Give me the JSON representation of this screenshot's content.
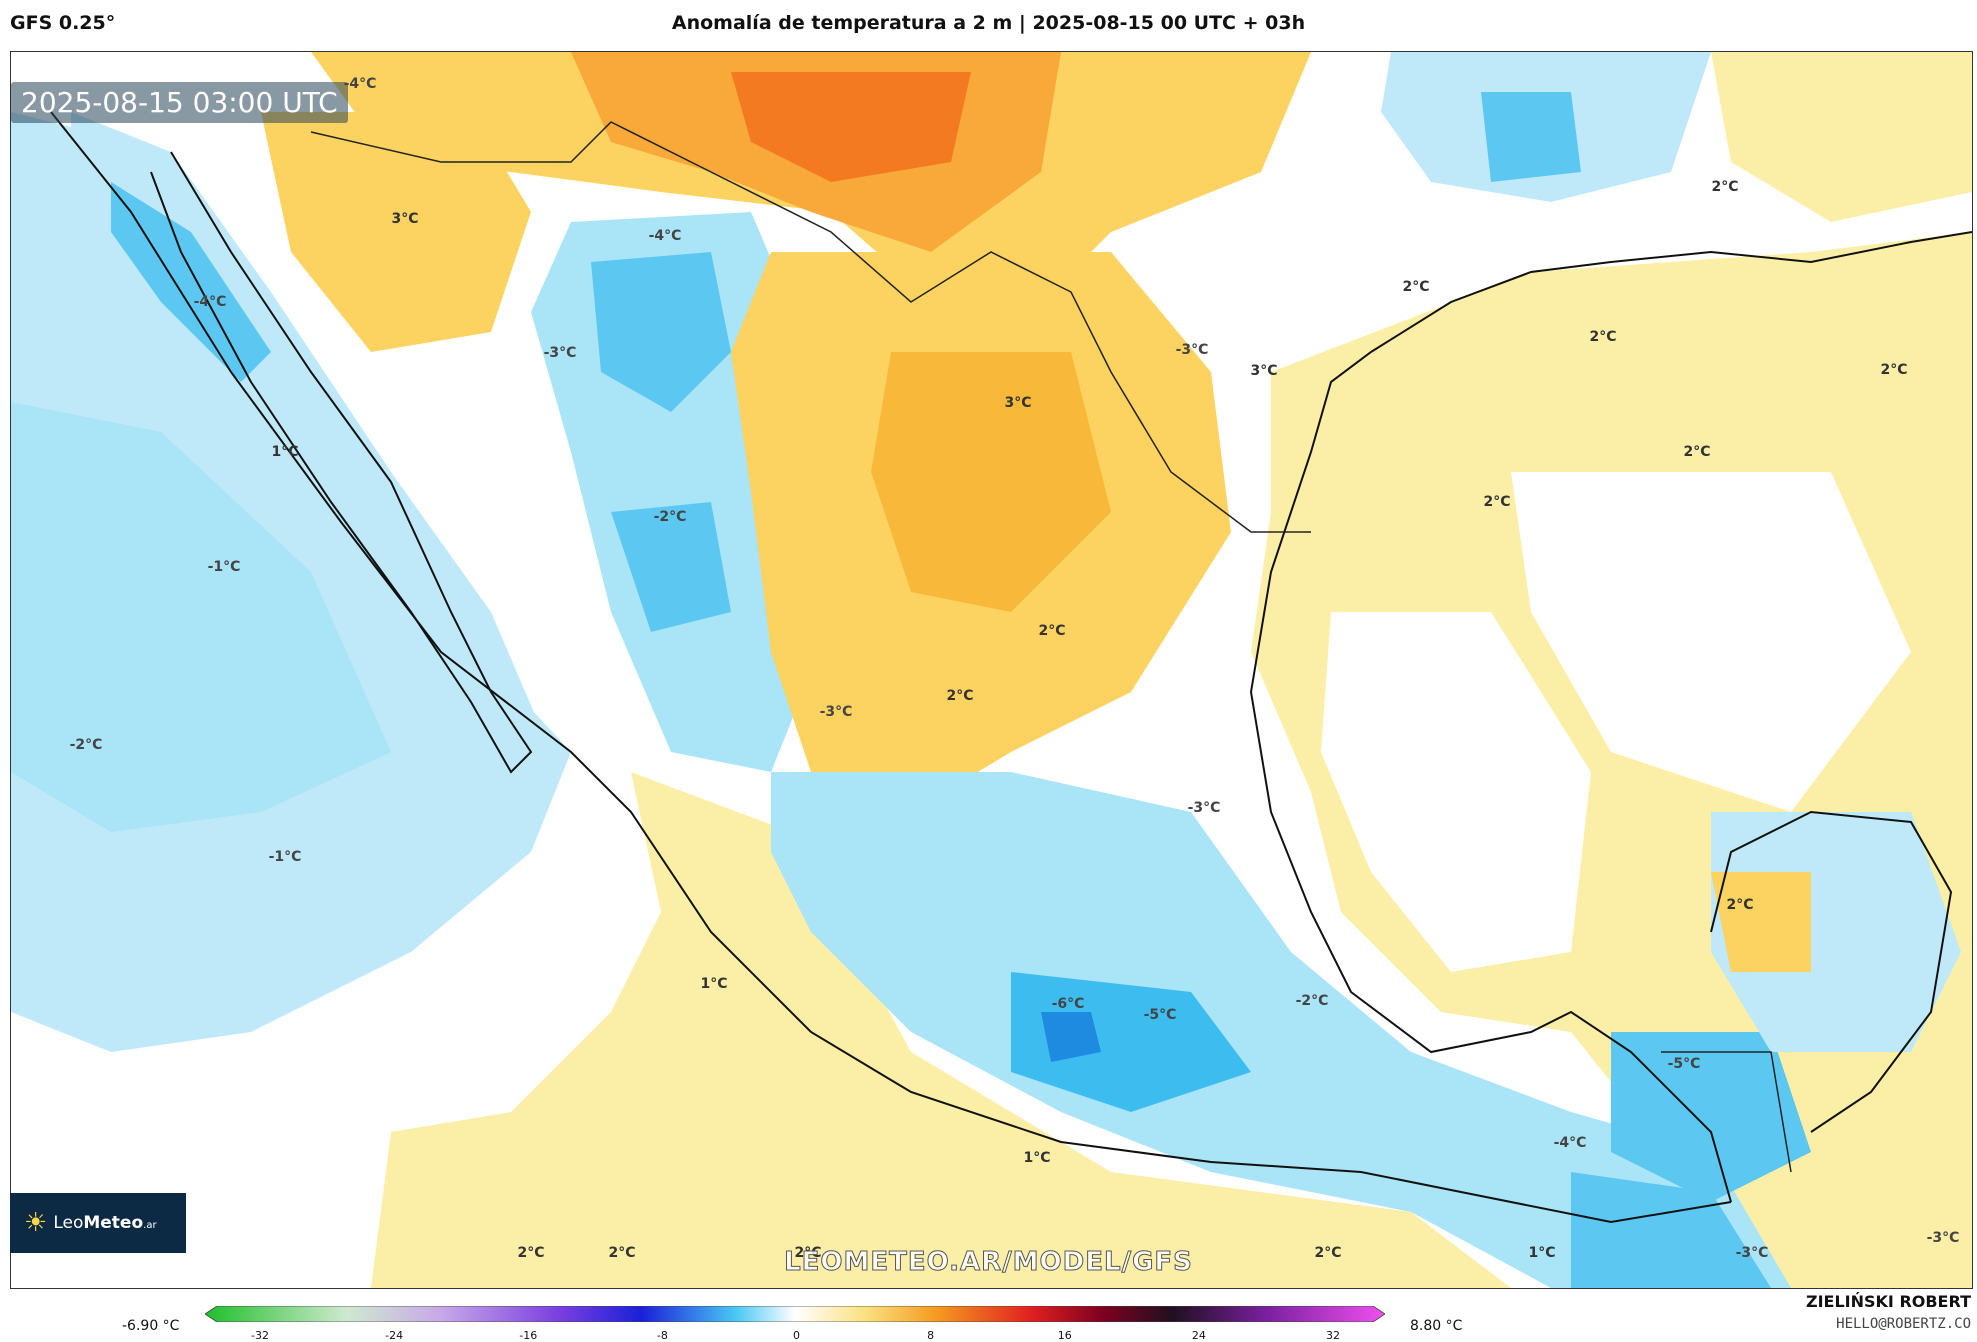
{
  "header": {
    "model": "GFS 0.25°",
    "title": "Anomalía de temperatura a 2 m | 2025-08-15 00 UTC + 03h"
  },
  "map": {
    "timestamp": "2025-08-15 03:00 UTC",
    "watermark": "LEOMETEO.AR/MODEL/GFS",
    "labels": [
      {
        "text": "-4°C"
      },
      {
        "text": "3°C"
      },
      {
        "text": "-4°C"
      },
      {
        "text": "-4°C"
      },
      {
        "text": "-3°C"
      },
      {
        "text": "-2°C"
      },
      {
        "text": "1°C"
      },
      {
        "text": "-1°C"
      },
      {
        "text": "-2°C"
      },
      {
        "text": "-1°C"
      },
      {
        "text": "3°C"
      },
      {
        "text": "2°C"
      },
      {
        "text": "2°C"
      },
      {
        "text": "-3°C"
      },
      {
        "text": "-3°C"
      },
      {
        "text": "-6°C"
      },
      {
        "text": "-5°C"
      },
      {
        "text": "-2°C"
      },
      {
        "text": "-5°C"
      },
      {
        "text": "-4°C"
      },
      {
        "text": "-3°C"
      },
      {
        "text": "1°C"
      },
      {
        "text": "1°C"
      },
      {
        "text": "2°C"
      },
      {
        "text": "2°C"
      },
      {
        "text": "2°C"
      },
      {
        "text": "2°C"
      },
      {
        "text": "1°C"
      },
      {
        "text": "-3°C"
      },
      {
        "text": "2°C"
      },
      {
        "text": "2°C"
      },
      {
        "text": "3°C"
      },
      {
        "text": "2°C"
      },
      {
        "text": "2°C"
      },
      {
        "text": "2°C"
      },
      {
        "text": "2°C"
      },
      {
        "text": "2°C"
      },
      {
        "text": "-3°C"
      }
    ]
  },
  "logo": {
    "brand_a": "Leo",
    "brand_b": "Meteo",
    "suffix": ".ar"
  },
  "colorbar": {
    "min_label": "-6.90 °C",
    "max_label": "8.80 °C",
    "ticks": [
      "-32",
      "-24",
      "-16",
      "-8",
      "0",
      "8",
      "16",
      "24",
      "32"
    ]
  },
  "credit": {
    "name": "ZIELIŃSKI ROBERT",
    "email": "HELLO@ROBERTZ.CO"
  },
  "colors": {
    "cold": "#a9e4f7",
    "cold_deep": "#3dbcf0",
    "warm": "#fbeea6",
    "hot": "#f5a020"
  }
}
